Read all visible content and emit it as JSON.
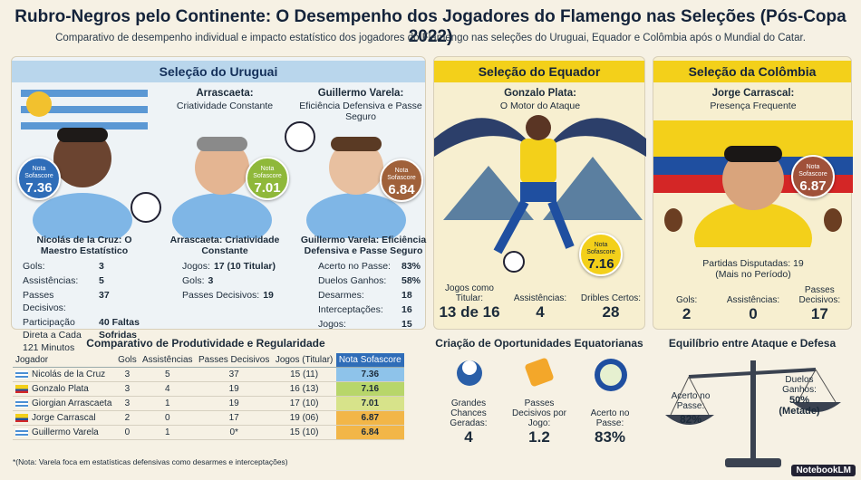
{
  "header": {
    "title": "Rubro-Negros pelo Continente: O Desempenho dos Jogadores do Flamengo nas Seleções (Pós-Copa 2022)",
    "subtitle": "Comparativo de desempenho individual e impacto estatístico dos jogadores do Flamengo nas seleções do Uruguai, Equador e Colômbia após o Mundial do Catar."
  },
  "uruguay": {
    "title": "Seleção do Uruguai",
    "delacruz": {
      "badge_label": "Nota Sofascore",
      "badge_value": "7.36",
      "caption": "Nicolás de la Cruz: O Maestro Estatístico",
      "stats": [
        [
          "Gols:",
          "3"
        ],
        [
          "Assistências:",
          "5"
        ],
        [
          "Passes Decisivos:",
          "37"
        ],
        [
          "Participação Direta a Cada 121 Minutos",
          "40 Faltas Sofridas"
        ]
      ]
    },
    "arrascaeta": {
      "heading": "Arrascaeta:",
      "subheading": "Criatividade Constante",
      "badge_label": "Nota Sofascore",
      "badge_value": "7.01",
      "caption": "Arrascaeta: Criatividade Constante",
      "stats": [
        [
          "Jogos:",
          "17 (10 Titular)"
        ],
        [
          "Gols:",
          "3"
        ],
        [
          "Passes Decisivos:",
          "19"
        ]
      ]
    },
    "varela": {
      "heading": "Guillermo Varela:",
      "subheading": "Eficiência Defensiva e Passe Seguro",
      "badge_label": "Nota Sofascore",
      "badge_value": "6.84",
      "caption": "Guillermo Varela: Eficiência Defensiva e Passe Seguro",
      "stats": [
        [
          "Acerto no Passe:",
          "83%"
        ],
        [
          "Duelos Ganhos:",
          "58%"
        ],
        [
          "Desarmes:",
          "18"
        ],
        [
          "Interceptações:",
          "16"
        ],
        [
          "Jogos:",
          "15"
        ]
      ]
    }
  },
  "ecuador": {
    "title": "Seleção do Equador",
    "heading": "Gonzalo Plata:",
    "subheading": "O Motor do Ataque",
    "badge_label": "Nota Sofascore",
    "badge_value": "7.16",
    "stats": [
      [
        "Jogos como Titular:",
        "13 de 16"
      ],
      [
        "Assistências:",
        "4"
      ],
      [
        "Dribles Certos:",
        "28"
      ]
    ]
  },
  "colombia": {
    "title": "Seleção da Colômbia",
    "heading": "Jorge Carrascal:",
    "subheading": "Presença Frequente",
    "badge_label": "Nota Sofascore",
    "badge_value": "6.87",
    "note": "Partidas Disputadas: 19 (Mais no Período)",
    "stats": [
      [
        "Gols:",
        "2"
      ],
      [
        "Assistências:",
        "0"
      ],
      [
        "Passes Decisivos:",
        "17"
      ]
    ]
  },
  "table": {
    "title": "Comparativo de Produtividade e Regularidade",
    "columns": [
      "Jogador",
      "Gols",
      "Assistências",
      "Passes Decisivos",
      "Jogos (Titular)",
      "Nota Sofascore"
    ],
    "rows": [
      [
        "Nicolás de la Cruz",
        "3",
        "5",
        "37",
        "15 (11)",
        "7.36"
      ],
      [
        "Gonzalo Plata",
        "3",
        "4",
        "19",
        "16 (13)",
        "7.16"
      ],
      [
        "Giorgian Arrascaeta",
        "3",
        "1",
        "19",
        "17 (10)",
        "7.01"
      ],
      [
        "Jorge Carrascal",
        "2",
        "0",
        "17",
        "19 (06)",
        "6.87"
      ],
      [
        "Guillermo Varela",
        "0",
        "1",
        "0*",
        "15 (10)",
        "6.84"
      ]
    ],
    "note": "*(Nota: Varela foca em estatísticas defensivas como desarmes e interceptações)"
  },
  "opportunities": {
    "title": "Criação de Oportunidades Equatorianas",
    "items": [
      [
        "Grandes Chances Geradas:",
        "4"
      ],
      [
        "Passes Decisivos por Jogo:",
        "1.2"
      ],
      [
        "Acerto no Passe:",
        "83%"
      ]
    ]
  },
  "balance": {
    "title": "Equilíbrio entre Ataque e Defesa",
    "left_label": "Acerto no Passe:",
    "left_value": "82%",
    "right_label": "Duelos Ganhos:",
    "right_value": "50% (Metade)"
  },
  "footer": {
    "brand": "NotebookLM"
  }
}
